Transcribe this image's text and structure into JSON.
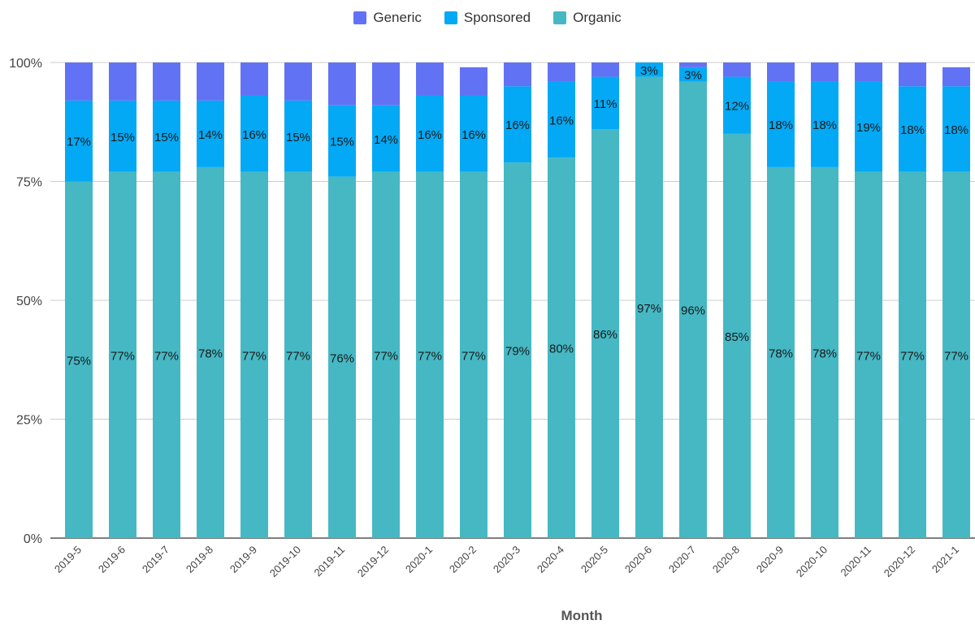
{
  "chart_data": {
    "type": "bar",
    "stacked": true,
    "percent_stacked": true,
    "xlabel": "Month",
    "ylabel": "",
    "ylim": [
      0,
      100
    ],
    "yticks": [
      "0%",
      "25%",
      "50%",
      "75%",
      "100%"
    ],
    "legend_position": "top-center",
    "grid": true,
    "categories": [
      "2019-5",
      "2019-6",
      "2019-7",
      "2019-8",
      "2019-9",
      "2019-10",
      "2019-11",
      "2019-12",
      "2020-1",
      "2020-2",
      "2020-3",
      "2020-4",
      "2020-5",
      "2020-6",
      "2020-7",
      "2020-8",
      "2020-9",
      "2020-10",
      "2020-11",
      "2020-12",
      "2021-1"
    ],
    "series": [
      {
        "name": "Organic",
        "color": "#45b8c4",
        "values": [
          75,
          77,
          77,
          78,
          77,
          77,
          76,
          77,
          77,
          77,
          79,
          80,
          86,
          97,
          96,
          85,
          78,
          78,
          77,
          77,
          77
        ],
        "labels": [
          "75%",
          "77%",
          "77%",
          "78%",
          "77%",
          "77%",
          "76%",
          "77%",
          "77%",
          "77%",
          "79%",
          "80%",
          "86%",
          "97%",
          "96%",
          "85%",
          "78%",
          "78%",
          "77%",
          "77%",
          "77%"
        ]
      },
      {
        "name": "Sponsored",
        "color": "#03a9f4",
        "values": [
          17,
          15,
          15,
          14,
          16,
          15,
          15,
          14,
          16,
          16,
          16,
          16,
          11,
          3,
          3,
          12,
          18,
          18,
          19,
          18,
          18
        ],
        "labels": [
          "17%",
          "15%",
          "15%",
          "14%",
          "16%",
          "15%",
          "15%",
          "14%",
          "16%",
          "16%",
          "16%",
          "16%",
          "11%",
          "3%",
          "3%",
          "12%",
          "18%",
          "18%",
          "19%",
          "18%",
          "18%"
        ]
      },
      {
        "name": "Generic",
        "color": "#6272f5",
        "values": [
          8,
          8,
          8,
          8,
          7,
          8,
          9,
          9,
          7,
          6,
          5,
          4,
          3,
          0,
          1,
          3,
          4,
          4,
          4,
          5,
          4
        ],
        "labels": []
      }
    ]
  },
  "legend": {
    "items": [
      {
        "name": "Generic",
        "color": "#6272f5"
      },
      {
        "name": "Sponsored",
        "color": "#03a9f4"
      },
      {
        "name": "Organic",
        "color": "#45b8c4"
      }
    ]
  }
}
